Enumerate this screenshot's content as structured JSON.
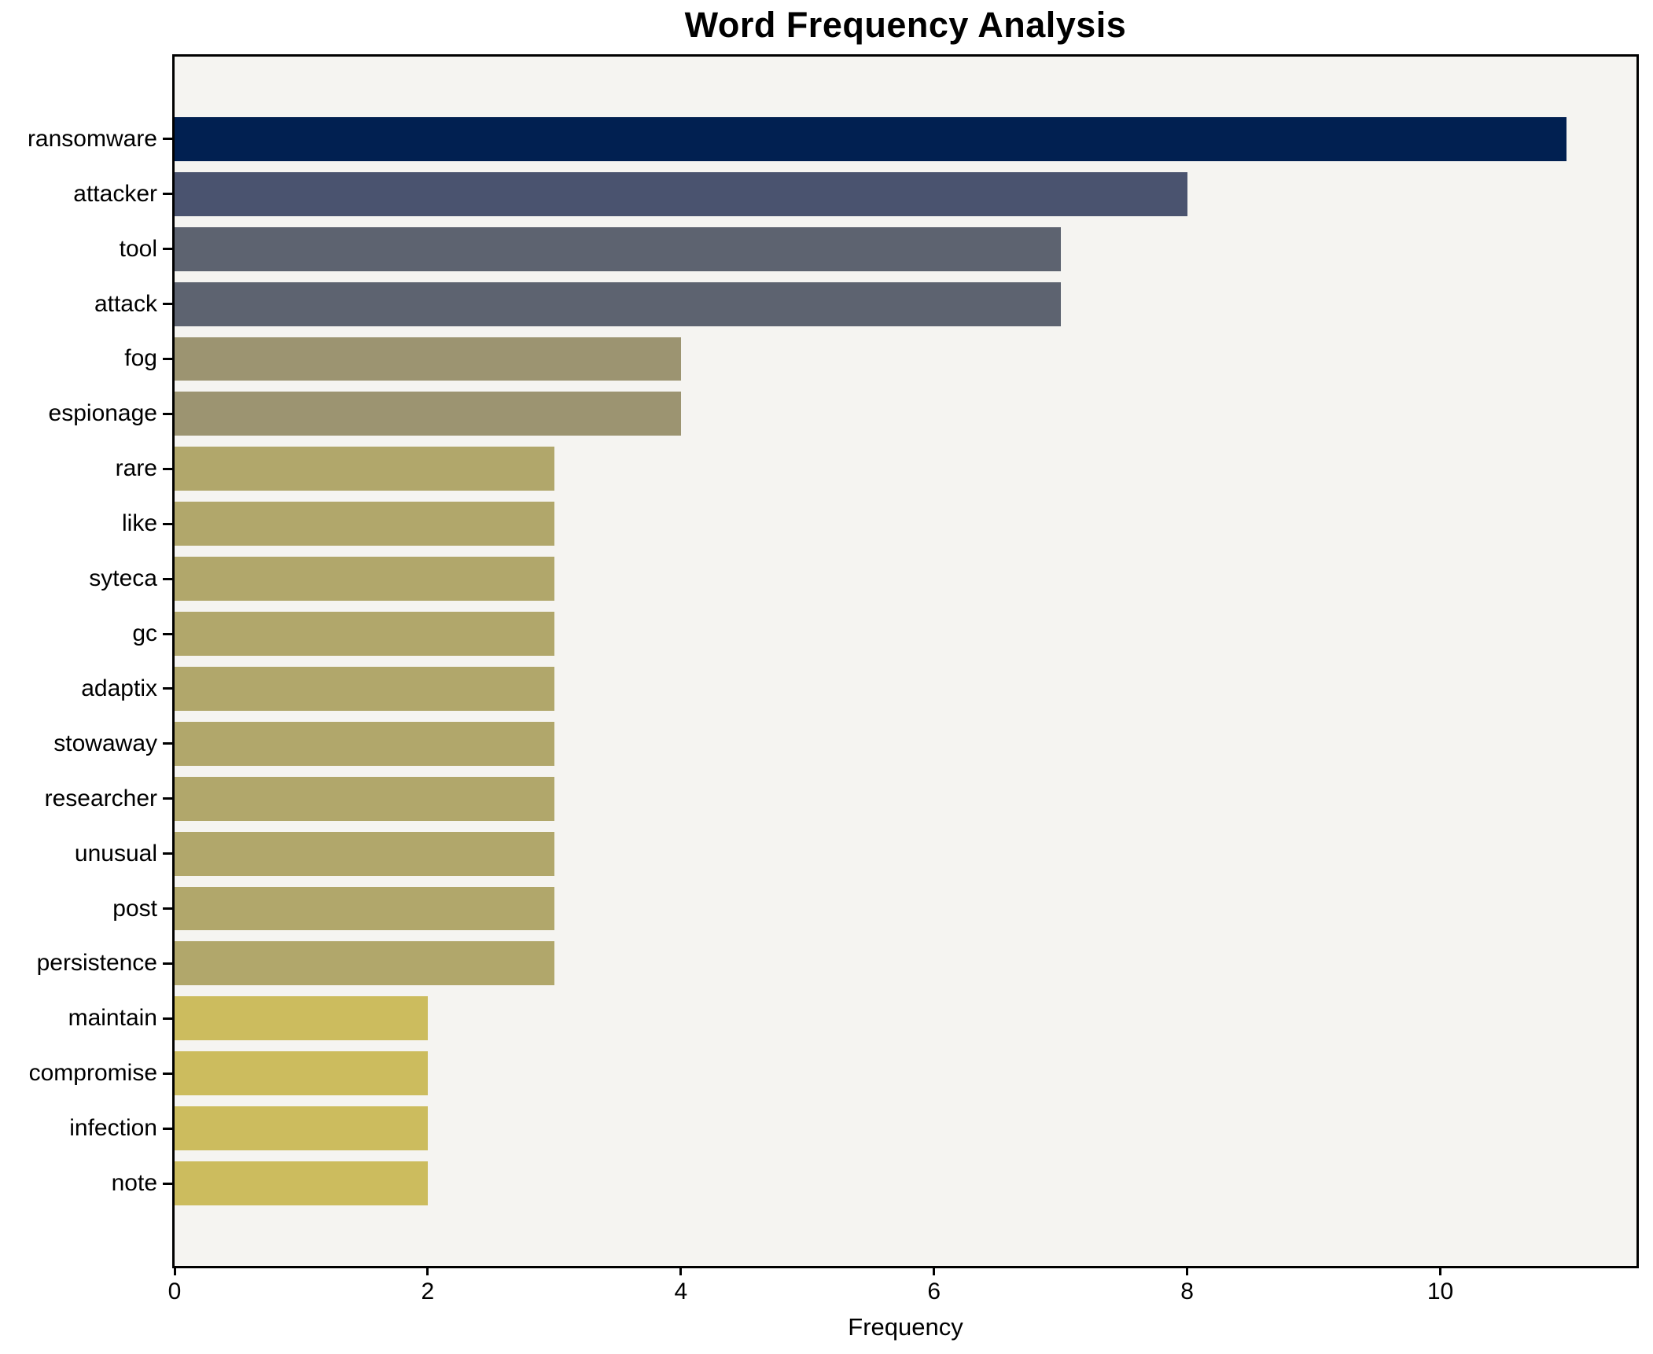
{
  "title": "Word Frequency Analysis",
  "chart_data": {
    "type": "bar",
    "orientation": "horizontal",
    "title": "Word Frequency Analysis",
    "xlabel": "Frequency",
    "ylabel": "",
    "categories": [
      "ransomware",
      "attacker",
      "tool",
      "attack",
      "fog",
      "espionage",
      "rare",
      "like",
      "syteca",
      "gc",
      "adaptix",
      "stowaway",
      "researcher",
      "unusual",
      "post",
      "persistence",
      "maintain",
      "compromise",
      "infection",
      "note"
    ],
    "values": [
      11,
      8,
      7,
      7,
      4,
      4,
      3,
      3,
      3,
      3,
      3,
      3,
      3,
      3,
      3,
      3,
      2,
      2,
      2,
      2
    ],
    "bar_colors": [
      "#012051",
      "#4a536f",
      "#5d6370",
      "#5d6370",
      "#9c9471",
      "#9c9471",
      "#b1a76b",
      "#b1a76b",
      "#b1a76b",
      "#b1a76b",
      "#b1a76b",
      "#b1a76b",
      "#b1a76b",
      "#b1a76b",
      "#b1a76b",
      "#b1a76b",
      "#ccbc5e",
      "#ccbc5e",
      "#ccbc5e",
      "#ccbc5e"
    ],
    "xticks": [
      0,
      2,
      4,
      6,
      8,
      10
    ],
    "xlim": [
      0,
      11.55
    ],
    "grid": false,
    "legend": false,
    "colors": {
      "figure_background": "#ffffff",
      "axes_background": "#f5f4f1",
      "spine": "#000000",
      "text": "#000000"
    }
  }
}
